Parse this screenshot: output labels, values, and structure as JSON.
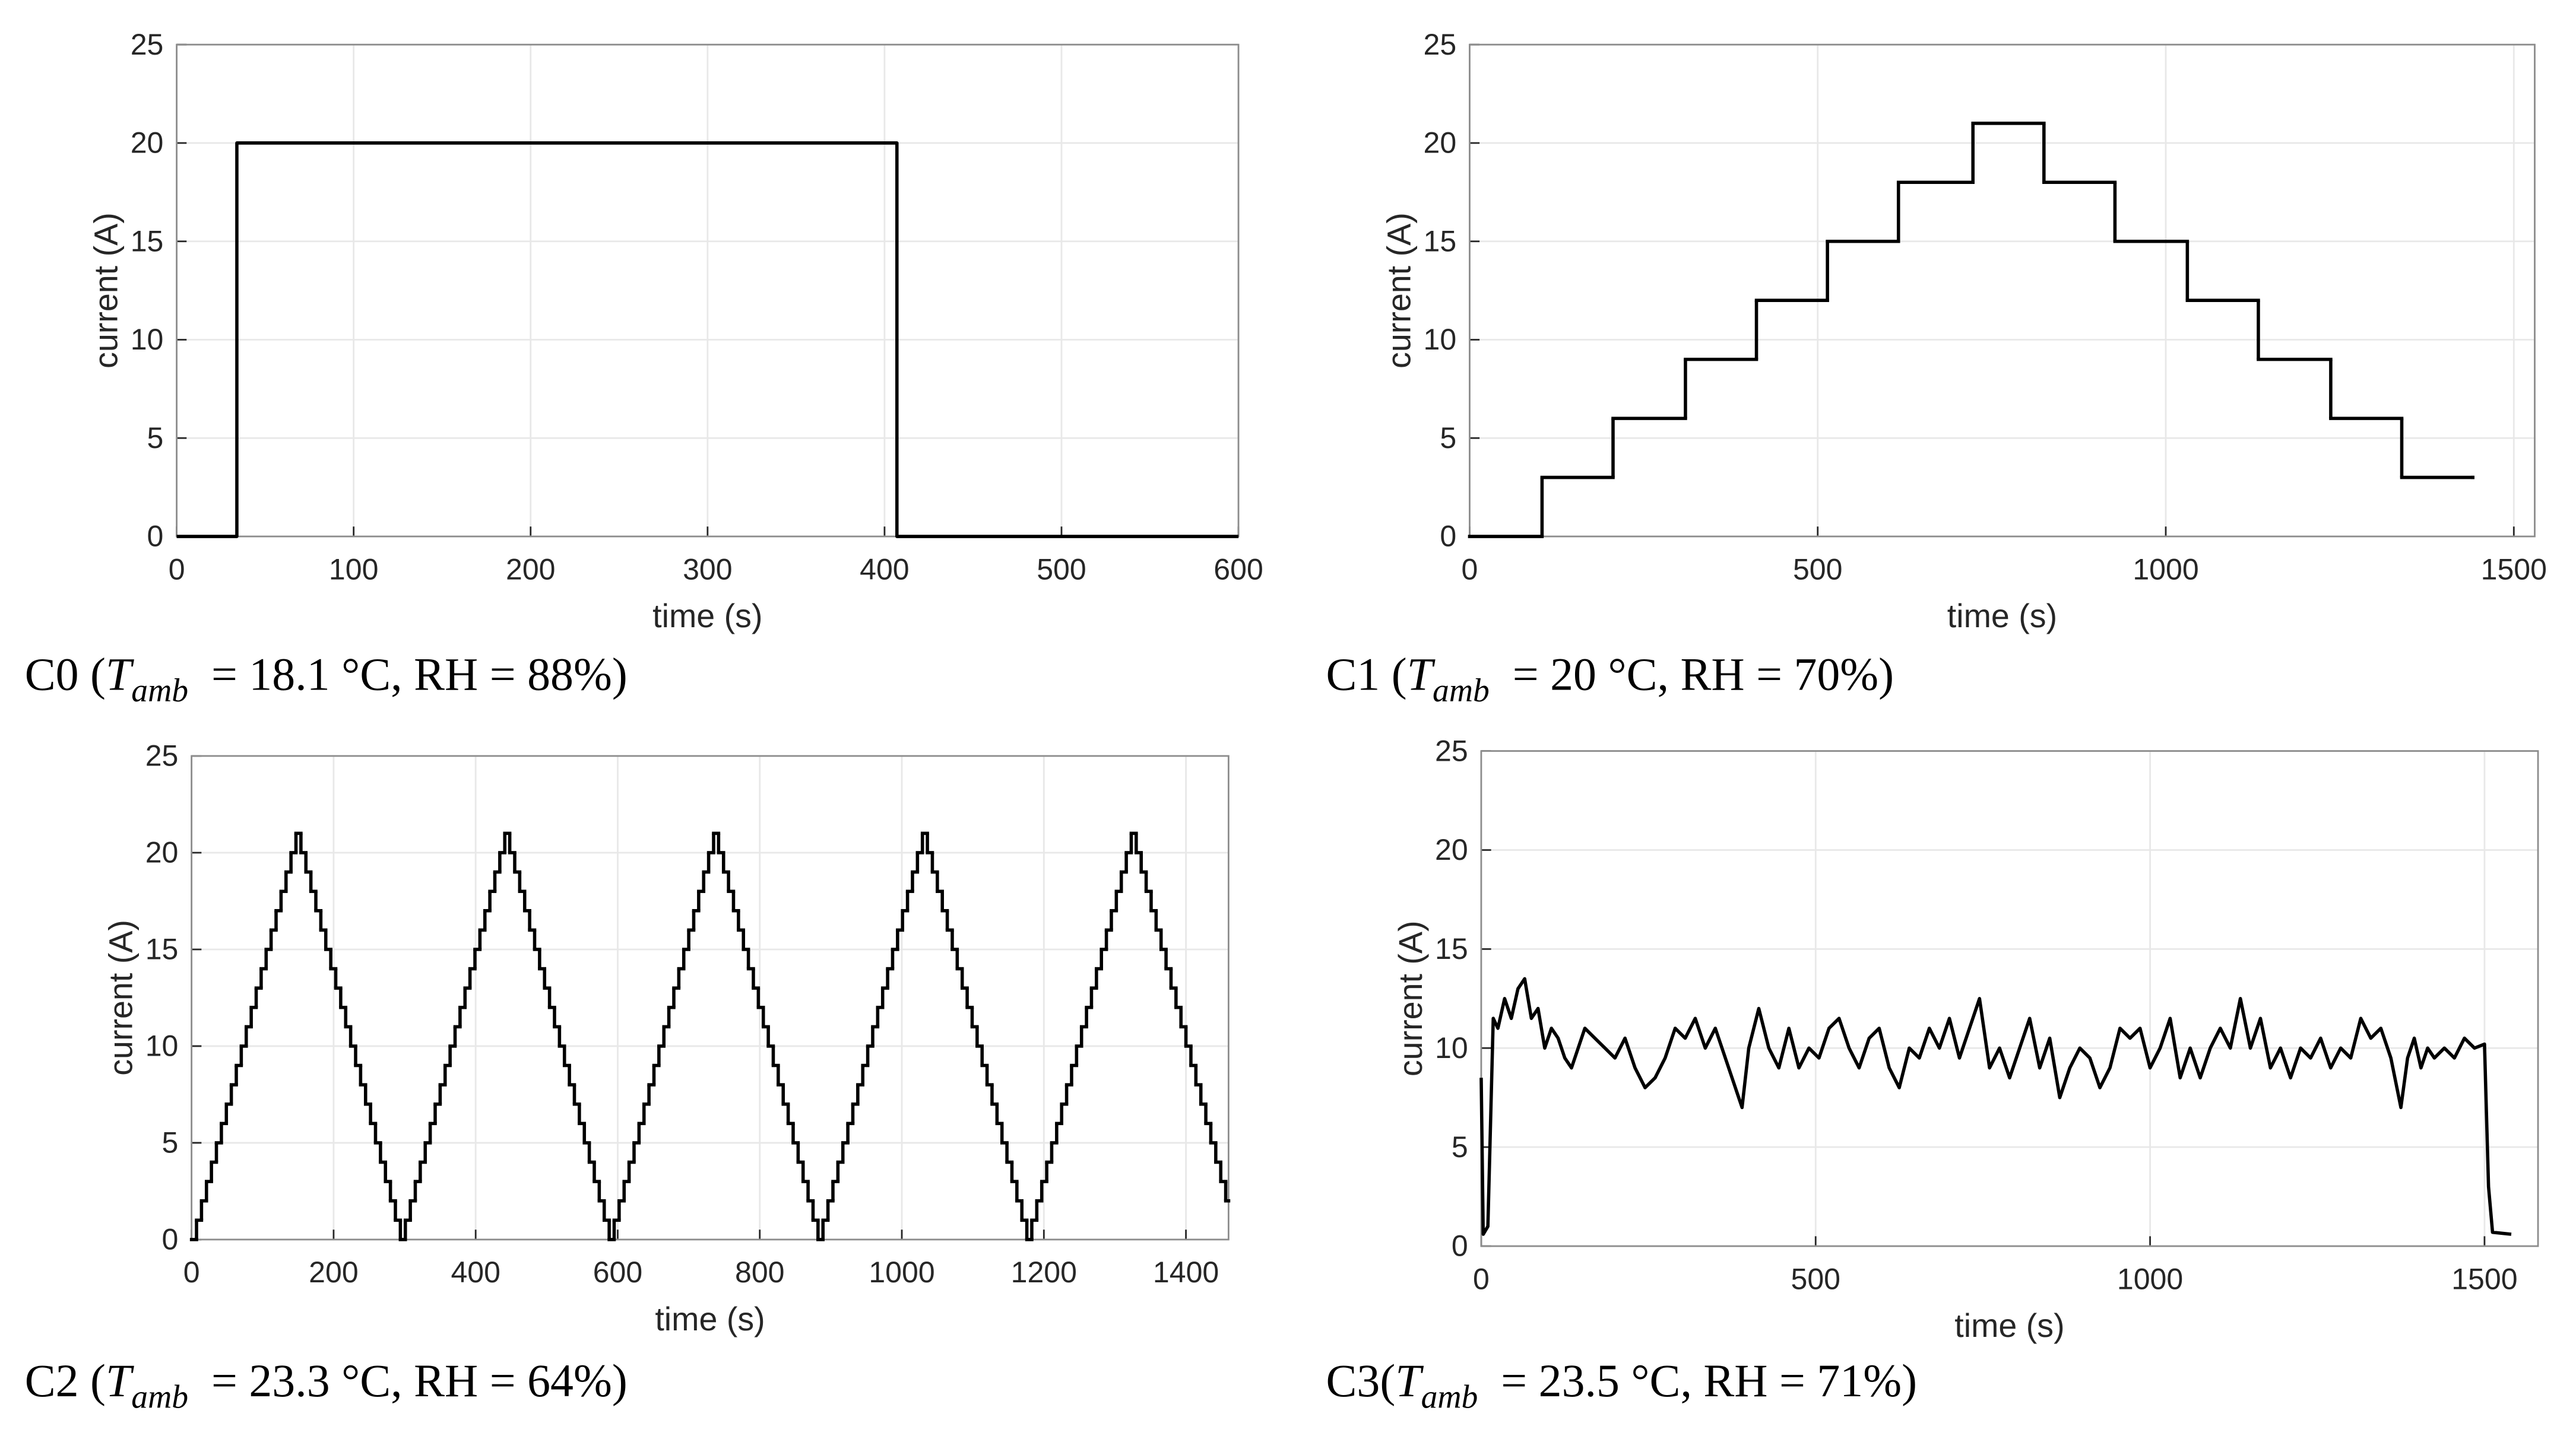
{
  "chart_data": [
    {
      "type": "line",
      "step": false,
      "xlabel": "time (s)",
      "ylabel": "current (A)",
      "color": "#000000",
      "grid": true,
      "xlim": [
        0,
        600
      ],
      "xticks": [
        0,
        100,
        200,
        300,
        400,
        500,
        600
      ],
      "ylim": [
        0,
        25
      ],
      "yticks": [
        0,
        5,
        10,
        15,
        20,
        25
      ],
      "x": [
        0,
        34,
        34,
        407,
        407,
        600
      ],
      "values": [
        0,
        0,
        20,
        20,
        0,
        0
      ],
      "caption": {
        "label": "C0 (",
        "variable": "T",
        "subscript": "amb",
        "text": "  = 18.1 °C, RH = 88%)"
      }
    },
    {
      "type": "line",
      "step": true,
      "xlabel": "time (s)",
      "ylabel": "current (A)",
      "color": "#000000",
      "grid": true,
      "xlim": [
        0,
        1530
      ],
      "xticks": [
        0,
        500,
        1000,
        1500
      ],
      "ylim": [
        0,
        25
      ],
      "yticks": [
        0,
        5,
        10,
        15,
        20,
        25
      ],
      "x": [
        0,
        104,
        206,
        310,
        412,
        514,
        616,
        723,
        825,
        927,
        1031,
        1133,
        1237,
        1339,
        1441
      ],
      "values": [
        0,
        3,
        6,
        9,
        12,
        15,
        18,
        21,
        18,
        15,
        12,
        9,
        6,
        3,
        3
      ],
      "caption": {
        "label": "C1 (",
        "variable": "T",
        "subscript": "amb",
        "text": "  = 20 °C, RH = 70%)"
      }
    },
    {
      "type": "line",
      "step": true,
      "xlabel": "time (s)",
      "ylabel": "current (A)",
      "color": "#000000",
      "grid": true,
      "xlim": [
        0,
        1460
      ],
      "xticks": [
        0,
        200,
        400,
        600,
        800,
        1000,
        1200,
        1400
      ],
      "ylim": [
        0,
        25
      ],
      "yticks": [
        0,
        5,
        10,
        15,
        20,
        25
      ],
      "x": [
        0,
        7,
        14,
        21,
        28,
        35,
        42,
        49,
        56,
        63,
        70,
        77,
        84,
        91,
        98,
        105,
        112,
        119,
        126,
        133,
        140,
        147,
        154,
        161,
        168,
        175,
        182,
        189,
        196,
        203,
        210,
        217,
        224,
        231,
        238,
        245,
        252,
        259,
        266,
        273,
        280,
        287,
        294,
        301,
        308,
        315,
        322,
        329,
        336,
        343,
        350,
        357,
        364,
        371,
        378,
        385,
        392,
        399,
        406,
        413,
        420,
        427,
        434,
        441,
        448,
        455,
        462,
        469,
        476,
        483,
        490,
        497,
        504,
        511,
        518,
        525,
        532,
        539,
        546,
        553,
        560,
        567,
        574,
        581,
        588,
        595,
        602,
        609,
        616,
        623,
        630,
        637,
        644,
        651,
        658,
        665,
        672,
        679,
        686,
        693,
        700,
        707,
        714,
        721,
        728,
        735,
        742,
        749,
        756,
        763,
        770,
        777,
        784,
        791,
        798,
        805,
        812,
        819,
        826,
        833,
        840,
        847,
        854,
        861,
        868,
        875,
        882,
        889,
        896,
        903,
        910,
        917,
        924,
        931,
        938,
        945,
        952,
        959,
        966,
        973,
        980,
        987,
        994,
        1001,
        1008,
        1015,
        1022,
        1029,
        1036,
        1043,
        1050,
        1057,
        1064,
        1071,
        1078,
        1085,
        1092,
        1099,
        1106,
        1113,
        1120,
        1127,
        1134,
        1141,
        1148,
        1155,
        1162,
        1169,
        1176,
        1183,
        1190,
        1197,
        1204,
        1211,
        1218,
        1225,
        1232,
        1239,
        1246,
        1253,
        1260,
        1267,
        1274,
        1281,
        1288,
        1295,
        1302,
        1309,
        1316,
        1323,
        1330,
        1337,
        1344,
        1351,
        1358,
        1365,
        1372,
        1379,
        1386,
        1393,
        1400,
        1407,
        1414,
        1421,
        1428,
        1435,
        1442,
        1449,
        1456,
        1460
      ],
      "values": [
        0,
        1,
        2,
        3,
        4,
        5,
        6,
        7,
        8,
        9,
        10,
        11,
        12,
        13,
        14,
        15,
        16,
        17,
        18,
        19,
        20,
        21,
        20,
        19,
        18,
        17,
        16,
        15,
        14,
        13,
        12,
        11,
        10,
        9,
        8,
        7,
        6,
        5,
        4,
        3,
        2,
        1,
        0,
        1,
        2,
        3,
        4,
        5,
        6,
        7,
        8,
        9,
        10,
        11,
        12,
        13,
        14,
        15,
        16,
        17,
        18,
        19,
        20,
        21,
        20,
        19,
        18,
        17,
        16,
        15,
        14,
        13,
        12,
        11,
        10,
        9,
        8,
        7,
        6,
        5,
        4,
        3,
        2,
        1,
        0,
        1,
        2,
        3,
        4,
        5,
        6,
        7,
        8,
        9,
        10,
        11,
        12,
        13,
        14,
        15,
        16,
        17,
        18,
        19,
        20,
        21,
        20,
        19,
        18,
        17,
        16,
        15,
        14,
        13,
        12,
        11,
        10,
        9,
        8,
        7,
        6,
        5,
        4,
        3,
        2,
        1,
        0,
        1,
        2,
        3,
        4,
        5,
        6,
        7,
        8,
        9,
        10,
        11,
        12,
        13,
        14,
        15,
        16,
        17,
        18,
        19,
        20,
        21,
        20,
        19,
        18,
        17,
        16,
        15,
        14,
        13,
        12,
        11,
        10,
        9,
        8,
        7,
        6,
        5,
        4,
        3,
        2,
        1,
        0,
        1,
        2,
        3,
        4,
        5,
        6,
        7,
        8,
        9,
        10,
        11,
        12,
        13,
        14,
        15,
        16,
        17,
        18,
        19,
        20,
        21,
        20,
        19,
        18,
        17,
        16,
        15,
        14,
        13,
        12,
        11,
        10,
        9,
        8,
        7,
        6,
        5,
        4,
        3,
        2,
        2
      ],
      "caption": {
        "label": "C2 (",
        "variable": "T",
        "subscript": "amb",
        "text": "  = 23.3 °C, RH = 64%)"
      }
    },
    {
      "type": "line",
      "step": false,
      "xlabel": "time (s)",
      "ylabel": "current (A)",
      "color": "#000000",
      "grid": true,
      "xlim": [
        0,
        1580
      ],
      "xticks": [
        0,
        500,
        1000,
        1500
      ],
      "ylim": [
        0,
        25
      ],
      "yticks": [
        0,
        5,
        10,
        15,
        20,
        25
      ],
      "x": [
        0,
        3,
        10,
        18,
        25,
        35,
        45,
        55,
        65,
        75,
        85,
        95,
        105,
        115,
        125,
        135,
        145,
        155,
        170,
        185,
        200,
        215,
        230,
        245,
        260,
        275,
        290,
        305,
        320,
        335,
        350,
        365,
        380,
        390,
        400,
        415,
        430,
        445,
        460,
        475,
        490,
        505,
        520,
        535,
        550,
        565,
        580,
        595,
        610,
        625,
        640,
        655,
        670,
        685,
        700,
        715,
        730,
        745,
        760,
        775,
        790,
        805,
        820,
        835,
        850,
        865,
        880,
        895,
        910,
        925,
        940,
        955,
        970,
        985,
        1000,
        1015,
        1030,
        1045,
        1060,
        1075,
        1090,
        1105,
        1120,
        1135,
        1150,
        1165,
        1180,
        1195,
        1210,
        1225,
        1240,
        1255,
        1270,
        1285,
        1300,
        1315,
        1330,
        1345,
        1360,
        1375,
        1385,
        1395,
        1405,
        1415,
        1425,
        1440,
        1455,
        1470,
        1485,
        1500,
        1506,
        1512,
        1540
      ],
      "values": [
        8.5,
        0.6,
        1,
        11.5,
        11,
        12.5,
        11.5,
        13,
        13.5,
        11.5,
        12,
        10,
        11,
        10.5,
        9.5,
        9,
        10,
        11,
        10.5,
        10,
        9.5,
        10.5,
        9,
        8,
        8.5,
        9.5,
        11,
        10.5,
        11.5,
        10,
        11,
        9.5,
        8,
        7,
        10,
        12,
        10,
        9,
        11,
        9,
        10,
        9.5,
        11,
        11.5,
        10,
        9,
        10.5,
        11,
        9,
        8,
        10,
        9.5,
        11,
        10,
        11.5,
        9.5,
        11,
        12.5,
        9,
        10,
        8.5,
        10,
        11.5,
        9,
        10.5,
        7.5,
        9,
        10,
        9.5,
        8,
        9,
        11,
        10.5,
        11,
        9,
        10,
        11.5,
        8.5,
        10,
        8.5,
        10,
        11,
        10,
        12.5,
        10,
        11.5,
        9,
        10,
        8.5,
        10,
        9.5,
        10.5,
        9,
        10,
        9.5,
        11.5,
        10.5,
        11,
        9.5,
        7,
        9.5,
        10.5,
        9,
        10,
        9.5,
        10,
        9.5,
        10.5,
        10,
        10.2,
        3,
        0.7,
        0.6
      ],
      "caption": {
        "label": "C3(",
        "variable": "T",
        "subscript": "amb",
        "text": "  = 23.5 °C, RH = 71%)"
      }
    }
  ]
}
